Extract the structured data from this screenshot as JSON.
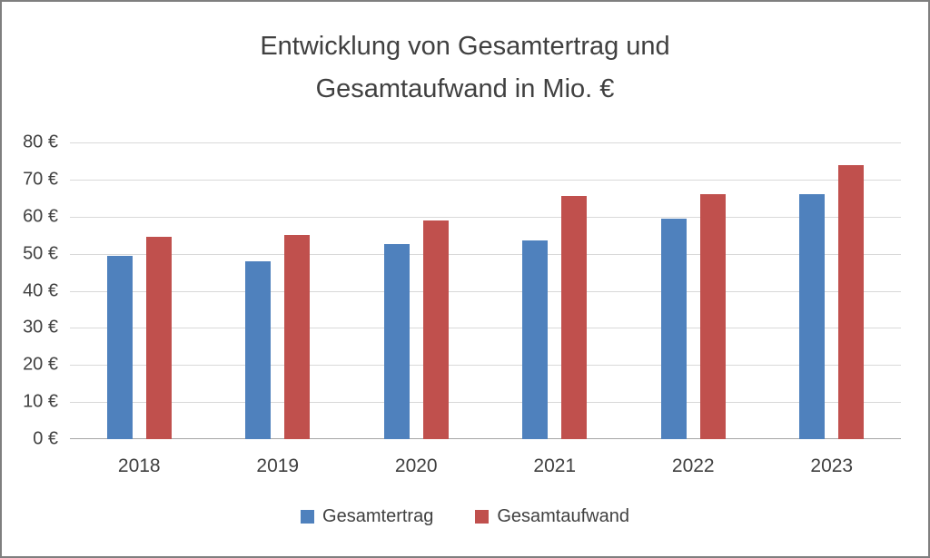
{
  "chart_data": {
    "type": "bar",
    "title": "Entwicklung von Gesamtertrag und Gesamtaufwand in Mio. €",
    "title_lines": [
      "Entwicklung von Gesamtertrag und",
      "Gesamtaufwand in Mio. €"
    ],
    "categories": [
      "2018",
      "2019",
      "2020",
      "2021",
      "2022",
      "2023"
    ],
    "series": [
      {
        "name": "Gesamtertrag",
        "color": "#4F81BD",
        "values": [
          49.5,
          48.0,
          52.5,
          53.5,
          59.5,
          66.0
        ]
      },
      {
        "name": "Gesamtaufwand",
        "color": "#C0504D",
        "values": [
          54.5,
          55.0,
          59.0,
          65.5,
          66.0,
          74.0
        ]
      }
    ],
    "ylim": [
      0,
      80
    ],
    "ytick_step": 10,
    "ytick_labels": [
      "0 €",
      "10 €",
      "20 €",
      "30 €",
      "40 €",
      "50 €",
      "60 €",
      "70 €",
      "80 €"
    ],
    "ylabel": "",
    "xlabel": "",
    "grid": true,
    "legend_position": "bottom",
    "colors": {
      "title_text": "#404040",
      "axis_text": "#404040",
      "gridline": "#d9d9d9",
      "baseline": "#a6a6a6",
      "border": "#7f7f7f"
    }
  }
}
